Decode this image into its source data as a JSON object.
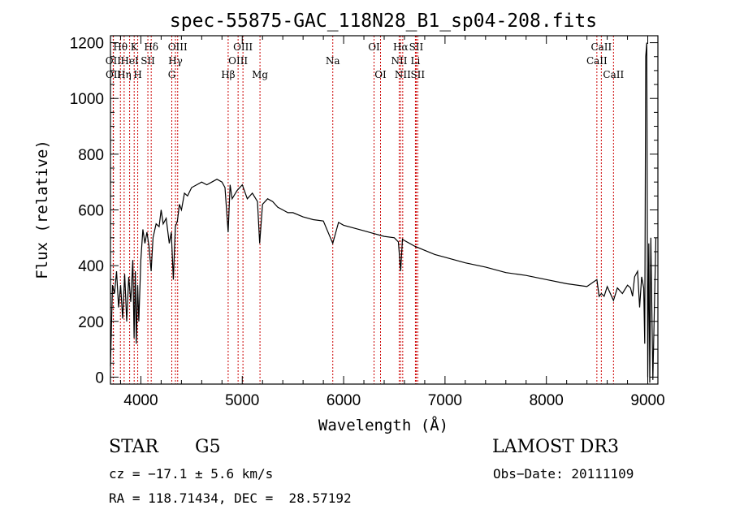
{
  "chart_data": {
    "type": "line",
    "title": "spec-55875-GAC_118N28_B1_sp04-208.fits",
    "xlabel": "Wavelength (Å)",
    "ylabel": "Flux (relative)",
    "xlim": [
      3700,
      9100
    ],
    "ylim": [
      -25,
      1225
    ],
    "xticks": [
      4000,
      5000,
      6000,
      7000,
      8000,
      9000
    ],
    "yticks": [
      0,
      200,
      400,
      600,
      800,
      1000,
      1200
    ],
    "series": [
      {
        "x": [
          3700,
          3720,
          3740,
          3760,
          3780,
          3800,
          3820,
          3840,
          3860,
          3880,
          3900,
          3920,
          3933,
          3945,
          3955,
          3968,
          3980,
          4000,
          4020,
          4040,
          4060,
          4080,
          4101,
          4120,
          4150,
          4180,
          4200,
          4220,
          4250,
          4280,
          4300,
          4320,
          4340,
          4360,
          4380,
          4400,
          4430,
          4460,
          4500,
          4550,
          4600,
          4650,
          4700,
          4750,
          4800,
          4830,
          4861,
          4880,
          4900,
          4950,
          5000,
          5050,
          5100,
          5150,
          5172,
          5200,
          5250,
          5300,
          5350,
          5400,
          5450,
          5500,
          5600,
          5700,
          5800,
          5893,
          5950,
          6000,
          6100,
          6200,
          6300,
          6400,
          6500,
          6540,
          6563,
          6580,
          6600,
          6700,
          6800,
          6900,
          7000,
          7200,
          7400,
          7600,
          7800,
          8000,
          8200,
          8400,
          8498,
          8520,
          8542,
          8570,
          8600,
          8662,
          8700,
          8750,
          8800,
          8830,
          8850,
          8870,
          8900,
          8920,
          8940,
          8960,
          8970,
          8980,
          8990,
          9000,
          9010,
          9020,
          9030,
          9050,
          9080
        ],
        "y": [
          40,
          330,
          300,
          380,
          250,
          330,
          210,
          370,
          200,
          360,
          270,
          420,
          140,
          380,
          120,
          330,
          200,
          420,
          530,
          480,
          520,
          470,
          380,
          500,
          550,
          540,
          600,
          550,
          570,
          480,
          520,
          350,
          540,
          560,
          620,
          600,
          660,
          650,
          680,
          690,
          700,
          690,
          700,
          710,
          700,
          680,
          520,
          690,
          640,
          670,
          690,
          640,
          660,
          630,
          480,
          620,
          640,
          630,
          610,
          600,
          590,
          590,
          575,
          565,
          560,
          480,
          555,
          545,
          535,
          525,
          515,
          505,
          500,
          485,
          380,
          495,
          490,
          470,
          455,
          440,
          430,
          410,
          395,
          375,
          365,
          350,
          335,
          325,
          350,
          290,
          300,
          290,
          325,
          275,
          320,
          300,
          330,
          320,
          290,
          360,
          380,
          250,
          360,
          320,
          120,
          1150,
          1200,
          0,
          480,
          -20,
          500,
          -10,
          500
        ]
      }
    ],
    "grid": false,
    "spectral_lines": [
      {
        "label": "Hθ",
        "wavelength": 3798,
        "row": 0
      },
      {
        "label": "OII",
        "wavelength": 3727,
        "row": 1
      },
      {
        "label": "OII",
        "wavelength": 3729,
        "row": 2
      },
      {
        "label": "Hη",
        "wavelength": 3835,
        "row": 2
      },
      {
        "label": "HeI",
        "wavelength": 3889,
        "row": 1
      },
      {
        "label": "K",
        "wavelength": 3934,
        "row": 0
      },
      {
        "label": "H",
        "wavelength": 3969,
        "row": 2
      },
      {
        "label": "SII",
        "wavelength": 4069,
        "row": 1
      },
      {
        "label": "Hδ",
        "wavelength": 4102,
        "row": 0
      },
      {
        "label": "G",
        "wavelength": 4305,
        "row": 2
      },
      {
        "label": "Hγ",
        "wavelength": 4341,
        "row": 1
      },
      {
        "label": "OIII",
        "wavelength": 4363,
        "row": 0
      },
      {
        "label": "Hβ",
        "wavelength": 4861,
        "row": 2
      },
      {
        "label": "OIII",
        "wavelength": 4959,
        "row": 1
      },
      {
        "label": "OIII",
        "wavelength": 5007,
        "row": 0
      },
      {
        "label": "Mg",
        "wavelength": 5175,
        "row": 2
      },
      {
        "label": "Na",
        "wavelength": 5893,
        "row": 1
      },
      {
        "label": "OI",
        "wavelength": 6300,
        "row": 0
      },
      {
        "label": "OI",
        "wavelength": 6364,
        "row": 2
      },
      {
        "label": "NII",
        "wavelength": 6548,
        "row": 1
      },
      {
        "label": "Hα",
        "wavelength": 6563,
        "row": 0
      },
      {
        "label": "NII",
        "wavelength": 6583,
        "row": 2
      },
      {
        "label": "Li",
        "wavelength": 6708,
        "row": 1
      },
      {
        "label": "SII",
        "wavelength": 6716,
        "row": 0
      },
      {
        "label": "SII",
        "wavelength": 6731,
        "row": 2
      },
      {
        "label": "CaII",
        "wavelength": 8498,
        "row": 1
      },
      {
        "label": "CaII",
        "wavelength": 8542,
        "row": 0
      },
      {
        "label": "CaII",
        "wavelength": 8662,
        "row": 2
      }
    ],
    "line_color": "#000000",
    "marker_color": "#cc0000"
  },
  "info": {
    "class": "STAR",
    "subclass": "G5",
    "survey": "LAMOST DR3",
    "cz": "cz = −17.1 ± 5.6 km/s",
    "obs_date": "Obs−Date: 20111109",
    "coords": "RA = 118.71434, DEC =  28.57192"
  }
}
